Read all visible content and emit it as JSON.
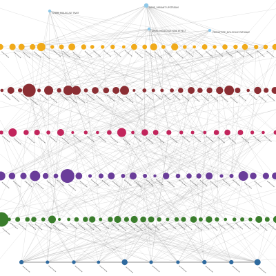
{
  "view": {
    "title": ""
  },
  "colors": {
    "edge": "#8f8f8f",
    "top": "#8fc8e8",
    "tier_1": "#f0aa1a",
    "tier_2": "#8b2e33",
    "tier_3": "#c2255c",
    "tier_4": "#6a3d9a",
    "tier_5": "#3a7d2c",
    "tier_6": "#2f6a9e"
  },
  "top_nodes": [
    {
      "id": "top-1",
      "label": "CHEM_MOLECULE TRAIT"
    },
    {
      "id": "top-2",
      "label": "GENE_VARIANT UPSTREAM"
    },
    {
      "id": "top-3",
      "label": "DRUG_MOLECULE SIDE EFFECT"
    },
    {
      "id": "top-4",
      "label": "PHENOTYPE_MOLECULE PATHWAY"
    }
  ],
  "tiers": [
    {
      "id": "tier-1",
      "color_key": "tier_1",
      "node_count": 28
    },
    {
      "id": "tier-2",
      "color_key": "tier_2",
      "node_count": 30
    },
    {
      "id": "tier-3",
      "color_key": "tier_3",
      "node_count": 24
    },
    {
      "id": "tier-4",
      "color_key": "tier_4",
      "node_count": 26
    },
    {
      "id": "tier-5",
      "color_key": "tier_5",
      "node_count": 34
    },
    {
      "id": "tier-6",
      "color_key": "tier_6",
      "node_count": 10
    }
  ]
}
